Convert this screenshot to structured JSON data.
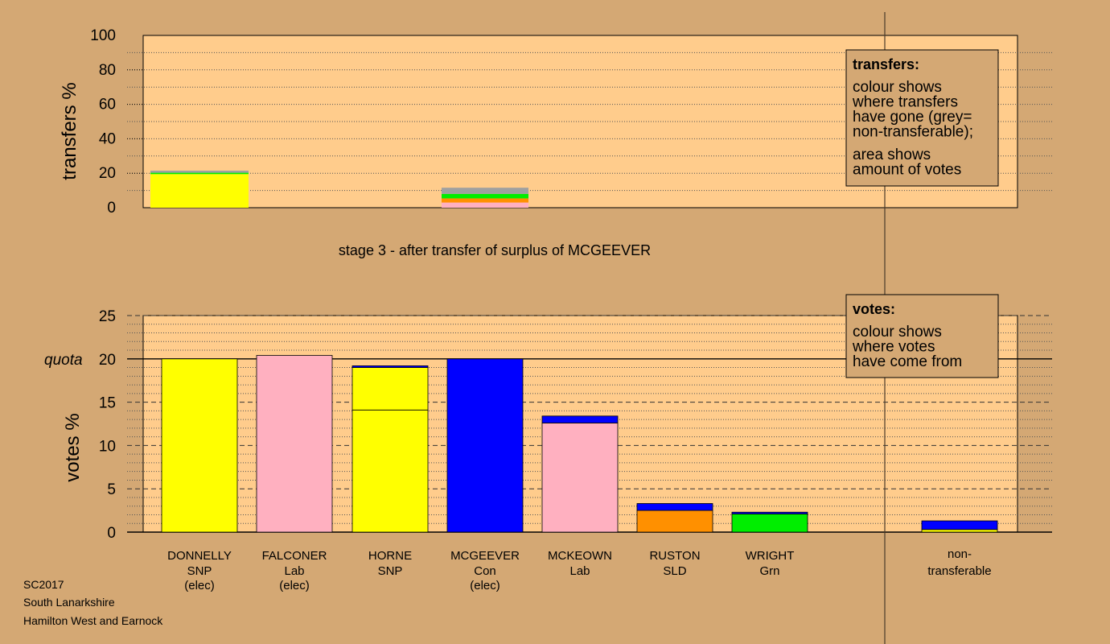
{
  "colors": {
    "page_background": "#d4a874",
    "plot_background": "#ffcc8c",
    "SNP": "#ffff00",
    "Lab": "#ffb0c0",
    "Con": "#0000ff",
    "SLD": "#ff9000",
    "Grn": "#00ee00",
    "non_transferable": "#a0a0a0"
  },
  "transfers_panel": {
    "ylabel": "transfers %",
    "yticks": [
      "0",
      "20",
      "40",
      "60",
      "80",
      "100"
    ],
    "legend_title": "transfers:",
    "legend_line1": "colour shows\nwhere transfers\nhave gone (grey=\nnon-transferable);",
    "legend_line2": "area shows\namount of votes"
  },
  "stage_caption": "stage 3 - after transfer of surplus of MCGEEVER",
  "votes_panel": {
    "ylabel": "votes %",
    "yticks": [
      "0",
      "5",
      "10",
      "15",
      "20",
      "25"
    ],
    "quota_label": "quota",
    "legend_title": "votes:",
    "legend_line1": "colour shows\nwhere votes\nhave come from"
  },
  "footer": {
    "line1": "SC2017",
    "line2": "South Lanarkshire",
    "line3": "Hamilton West and Earnock"
  },
  "chart_data": [
    {
      "type": "bar",
      "title": "",
      "ylabel": "transfers %",
      "ylim": [
        0,
        100
      ],
      "grid": true,
      "legend": "top-right",
      "bars": [
        {
          "source": "DONNELLY",
          "segments": [
            {
              "party": "SNP",
              "value": 19.5
            },
            {
              "party": "Grn",
              "value": 0.8
            },
            {
              "party": "non_transferable",
              "value": 1.2
            }
          ]
        },
        {
          "source": "MCGEEVER",
          "segments": [
            {
              "party": "Lab",
              "value": 3.0
            },
            {
              "party": "SLD",
              "value": 2.4
            },
            {
              "party": "Grn",
              "value": 2.6
            },
            {
              "party": "non_transferable",
              "value": 3.6
            }
          ]
        }
      ]
    },
    {
      "type": "bar",
      "title": "",
      "ylabel": "votes %",
      "ylim": [
        0,
        25
      ],
      "quota": 20,
      "grid": true,
      "legend": "top-right",
      "candidates": [
        {
          "name": "DONNELLY",
          "party": "SNP",
          "status": "(elec)",
          "segments": [
            {
              "party": "SNP",
              "value": 20.0
            }
          ]
        },
        {
          "name": "FALCONER",
          "party": "Lab",
          "status": "(elec)",
          "segments": [
            {
              "party": "Lab",
              "value": 20.4
            }
          ]
        },
        {
          "name": "HORNE",
          "party": "SNP",
          "status": "",
          "segments": [
            {
              "party": "SNP",
              "value": 14.1
            },
            {
              "party": "SNP",
              "value": 4.9
            },
            {
              "party": "Con",
              "value": 0.2
            }
          ]
        },
        {
          "name": "MCGEEVER",
          "party": "Con",
          "status": "(elec)",
          "segments": [
            {
              "party": "Con",
              "value": 20.0
            }
          ]
        },
        {
          "name": "MCKEOWN",
          "party": "Lab",
          "status": "",
          "segments": [
            {
              "party": "Lab",
              "value": 12.6
            },
            {
              "party": "Con",
              "value": 0.8
            }
          ]
        },
        {
          "name": "RUSTON",
          "party": "SLD",
          "status": "",
          "segments": [
            {
              "party": "SLD",
              "value": 2.5
            },
            {
              "party": "Con",
              "value": 0.8
            }
          ]
        },
        {
          "name": "WRIGHT",
          "party": "Grn",
          "status": "",
          "segments": [
            {
              "party": "Grn",
              "value": 2.1
            },
            {
              "party": "Con",
              "value": 0.2
            }
          ]
        }
      ],
      "non_transferable": {
        "label_line1": "non-",
        "label_line2": "transferable",
        "segments": [
          {
            "party": "SNP",
            "value": 0.3
          },
          {
            "party": "Con",
            "value": 1.0
          }
        ]
      }
    }
  ]
}
